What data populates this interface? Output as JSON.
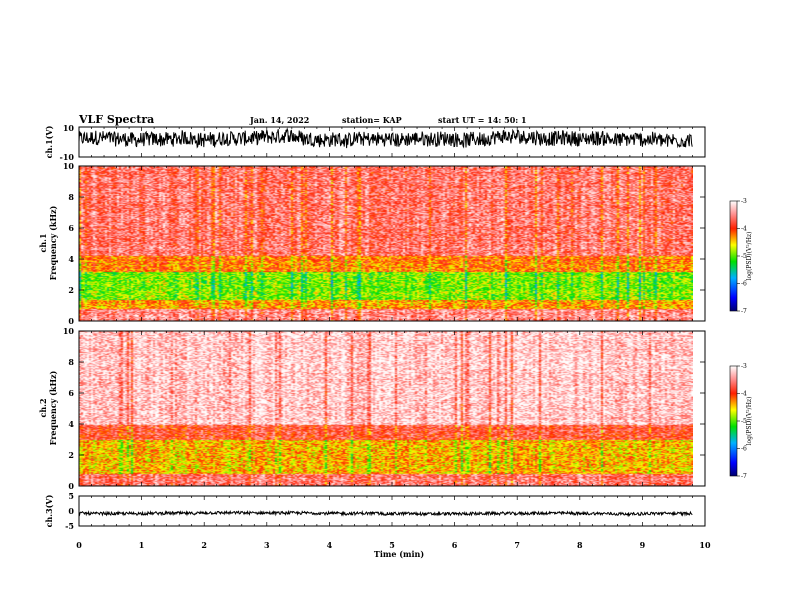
{
  "header": {
    "title": "VLF Spectra",
    "date": "Jan. 14, 2022",
    "station": "station= KAP",
    "start_ut": "start  UT  =   14: 50: 1"
  },
  "chart_data": [
    {
      "type": "line",
      "panel": "ch1-waveform",
      "ylabel": "ch.1(V)",
      "ylim": [
        -10,
        10
      ],
      "yticks": [
        "10",
        "-10"
      ],
      "xlim": [
        0,
        10
      ],
      "trace_end_min": 9.8,
      "trace_range_v": [
        -4,
        8
      ]
    },
    {
      "type": "heatmap",
      "panel": "ch1-spectrogram",
      "ylabel": "ch.1\nFrequency (kHz)",
      "ylim": [
        0,
        10
      ],
      "yticks": [
        "0",
        "2",
        "4",
        "6",
        "8",
        "10"
      ],
      "xlim": [
        0,
        10
      ],
      "data_end_min": 9.8,
      "colorbar": {
        "label": "log(PSD)(V²/Hz)",
        "range": [
          -7,
          -3
        ],
        "ticks": [
          "-3",
          "-4",
          "-5",
          "-6",
          "-7"
        ]
      },
      "bands_khz": [
        {
          "from": 0,
          "to": 0.8,
          "level": -3.5
        },
        {
          "from": 0.8,
          "to": 1.4,
          "level": -4.3
        },
        {
          "from": 1.4,
          "to": 3.2,
          "level": -4.9
        },
        {
          "from": 3.2,
          "to": 4.2,
          "level": -4.2
        },
        {
          "from": 4.2,
          "to": 10,
          "level": -3.6
        }
      ]
    },
    {
      "type": "heatmap",
      "panel": "ch2-spectrogram",
      "ylabel": "ch.2\nFrequency (kHz)",
      "ylim": [
        0,
        10
      ],
      "yticks": [
        "0",
        "2",
        "4",
        "6",
        "8",
        "10"
      ],
      "xlim": [
        0,
        10
      ],
      "data_end_min": 9.8,
      "colorbar": {
        "label": "log(PSD)(V²/Hz)",
        "range": [
          -7,
          -3
        ],
        "ticks": [
          "-3",
          "-4",
          "-5",
          "-6",
          "-7"
        ]
      },
      "bands_khz": [
        {
          "from": 0,
          "to": 0.8,
          "level": -3.6
        },
        {
          "from": 0.8,
          "to": 3.0,
          "level": -4.4
        },
        {
          "from": 3.0,
          "to": 4.0,
          "level": -3.8
        },
        {
          "from": 4.0,
          "to": 10,
          "level": -3.2
        }
      ]
    },
    {
      "type": "line",
      "panel": "ch3-waveform",
      "ylabel": "ch.3(V)",
      "ylim": [
        -5,
        5
      ],
      "yticks": [
        "5",
        "0",
        "-5"
      ],
      "xlim": [
        0,
        10
      ],
      "trace_end_min": 9.8,
      "trace_range_v": [
        -1.3,
        -0.3
      ]
    }
  ],
  "x_axis": {
    "label": "Time (min)",
    "ticks": [
      "0",
      "1",
      "2",
      "3",
      "4",
      "5",
      "6",
      "7",
      "8",
      "9",
      "10"
    ]
  }
}
